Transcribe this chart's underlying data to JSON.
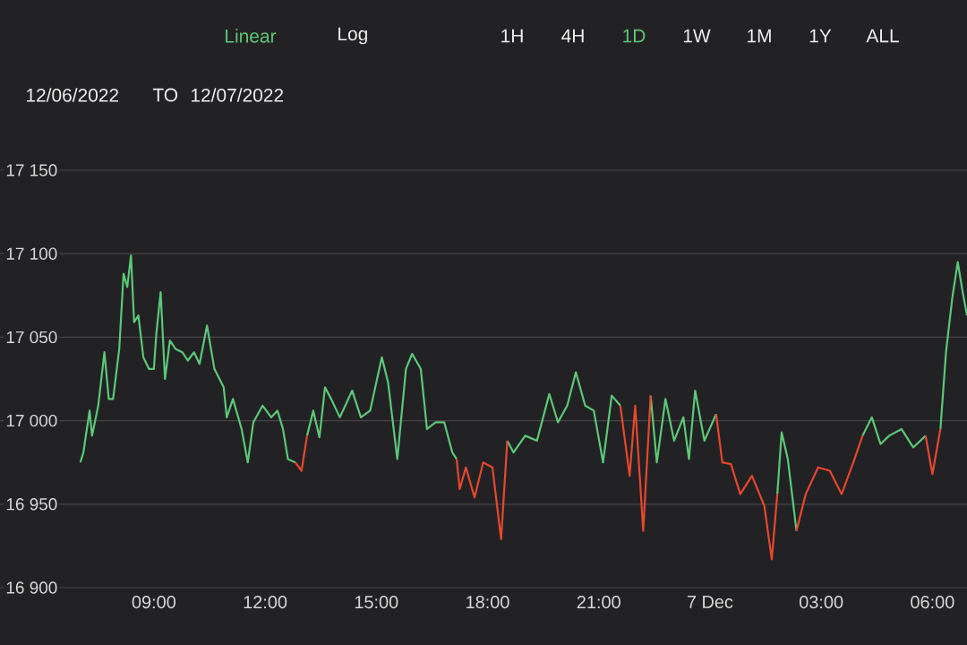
{
  "chart_data": {
    "type": "line",
    "annotations": [
      "Linear",
      "Log",
      "1H",
      "4H",
      "1D",
      "1W",
      "1M",
      "1Y",
      "ALL",
      "12/06/2022",
      "TO",
      "12/07/2022"
    ],
    "x": [
      "2022-12-06T07:01",
      "2022-12-06T07:06",
      "2022-12-06T07:16",
      "2022-12-06T07:20",
      "2022-12-06T07:30",
      "2022-12-06T07:40",
      "2022-12-06T07:47",
      "2022-12-06T07:54",
      "2022-12-06T08:04",
      "2022-12-06T08:11",
      "2022-12-06T08:17",
      "2022-12-06T08:23",
      "2022-12-06T08:28",
      "2022-12-06T08:35",
      "2022-12-06T08:43",
      "2022-12-06T08:52",
      "2022-12-06T09:00",
      "2022-12-06T09:04",
      "2022-12-06T09:11",
      "2022-12-06T09:18",
      "2022-12-06T09:26",
      "2022-12-06T09:35",
      "2022-12-06T09:46",
      "2022-12-06T09:55",
      "2022-12-06T10:05",
      "2022-12-06T10:14",
      "2022-12-06T10:26",
      "2022-12-06T10:38",
      "2022-12-06T10:53",
      "2022-12-06T10:58",
      "2022-12-06T11:08",
      "2022-12-06T11:22",
      "2022-12-06T11:32",
      "2022-12-06T11:41",
      "2022-12-06T11:56",
      "2022-12-06T12:10",
      "2022-12-06T12:20",
      "2022-12-06T12:29",
      "2022-12-06T12:37",
      "2022-12-06T12:49",
      "2022-12-06T12:59",
      "2022-12-06T13:08",
      "2022-12-06T13:18",
      "2022-12-06T13:28",
      "2022-12-06T13:37",
      "2022-12-06T13:47",
      "2022-12-06T14:01",
      "2022-12-06T14:21",
      "2022-12-06T14:35",
      "2022-12-06T14:50",
      "2022-12-06T15:09",
      "2022-12-06T15:19",
      "2022-12-06T15:34",
      "2022-12-06T15:48",
      "2022-12-06T15:58",
      "2022-12-06T16:12",
      "2022-12-06T16:22",
      "2022-12-06T16:36",
      "2022-12-06T16:50",
      "2022-12-06T17:03",
      "2022-12-06T17:10",
      "2022-12-06T17:15",
      "2022-12-06T17:25",
      "2022-12-06T17:39",
      "2022-12-06T17:53",
      "2022-12-06T18:08",
      "2022-12-06T18:22",
      "2022-12-06T18:32",
      "2022-12-06T18:42",
      "2022-12-06T19:01",
      "2022-12-06T19:20",
      "2022-12-06T19:40",
      "2022-12-06T19:54",
      "2022-12-06T20:09",
      "2022-12-06T20:23",
      "2022-12-06T20:38",
      "2022-12-06T20:52",
      "2022-12-06T21:07",
      "2022-12-06T21:21",
      "2022-12-06T21:35",
      "2022-12-06T21:50",
      "2022-12-06T21:59",
      "2022-12-06T22:12",
      "2022-12-06T22:24",
      "2022-12-06T22:34",
      "2022-12-06T22:48",
      "2022-12-06T23:02",
      "2022-12-06T23:17",
      "2022-12-06T23:26",
      "2022-12-06T23:36",
      "2022-12-06T23:51",
      "2022-12-07T00:10",
      "2022-12-07T00:20",
      "2022-12-07T00:34",
      "2022-12-07T00:49",
      "2022-12-07T01:08",
      "2022-12-07T01:28",
      "2022-12-07T01:40",
      "2022-12-07T01:49",
      "2022-12-07T01:56",
      "2022-12-07T02:06",
      "2022-12-07T02:20",
      "2022-12-07T02:35",
      "2022-12-07T02:55",
      "2022-12-07T03:14",
      "2022-12-07T03:33",
      "2022-12-07T03:52",
      "2022-12-07T04:07",
      "2022-12-07T04:22",
      "2022-12-07T04:36",
      "2022-12-07T04:50",
      "2022-12-07T05:10",
      "2022-12-07T05:29",
      "2022-12-07T05:49",
      "2022-12-07T06:00",
      "2022-12-07T06:13",
      "2022-12-07T06:22",
      "2022-12-07T06:32",
      "2022-12-07T06:41",
      "2022-12-07T06:49",
      "2022-12-07T06:56"
    ],
    "series": [
      {
        "color": "#5cc878",
        "values": [
          16975,
          16981,
          17006,
          16991,
          17009,
          17041,
          17013,
          17013,
          17043,
          17088,
          17080,
          17099,
          17059,
          17063,
          17038,
          17031,
          17031,
          17052,
          17077,
          17025,
          17048,
          17043,
          17041,
          17036,
          17041,
          17034,
          17057,
          17031,
          17020,
          17002,
          17013,
          16995,
          16975,
          16999,
          17009,
          17002,
          17006,
          16995,
          16977,
          16975,
          null,
          16991,
          17006,
          16990,
          17020,
          17013,
          17002,
          17018,
          17002,
          17006,
          17038,
          17023,
          16977,
          17031,
          17040,
          17031,
          16995,
          16999,
          16999,
          16981,
          16977,
          null,
          null,
          null,
          null,
          null,
          null,
          16988,
          16981,
          16991,
          16988,
          17016,
          16999,
          17009,
          17029,
          17009,
          17006,
          16975,
          17015,
          17009,
          null,
          null,
          null,
          17015,
          16975,
          17013,
          16988,
          17002,
          16977,
          17018,
          16988,
          17004,
          null,
          null,
          null,
          null,
          null,
          null,
          16956,
          16993,
          16977,
          16934,
          null,
          null,
          null,
          null,
          null,
          16991,
          17002,
          16986,
          16991,
          16995,
          16984,
          16991,
          null,
          16995,
          17041,
          17073,
          17095,
          17077,
          17063
        ]
      },
      {
        "color": "#e8472e",
        "values": [
          null,
          null,
          null,
          null,
          null,
          null,
          null,
          null,
          null,
          null,
          null,
          null,
          null,
          null,
          null,
          null,
          null,
          null,
          null,
          null,
          null,
          null,
          null,
          null,
          null,
          null,
          null,
          null,
          null,
          null,
          null,
          null,
          null,
          null,
          null,
          null,
          null,
          null,
          null,
          16975,
          16970,
          16991,
          null,
          null,
          null,
          null,
          null,
          null,
          null,
          null,
          null,
          null,
          null,
          null,
          null,
          null,
          null,
          null,
          null,
          null,
          16977,
          16959,
          16972,
          16954,
          16975,
          16972,
          16929,
          16988,
          null,
          null,
          null,
          null,
          null,
          null,
          null,
          null,
          null,
          null,
          null,
          17009,
          16967,
          17009,
          16934,
          17015,
          null,
          null,
          null,
          null,
          null,
          null,
          null,
          17004,
          16975,
          16974,
          16956,
          16967,
          16949,
          16917,
          16956,
          null,
          null,
          16934,
          16956,
          16972,
          16970,
          16956,
          16975,
          16991,
          null,
          null,
          null,
          null,
          null,
          16991,
          16968,
          16995,
          null,
          null,
          null,
          null,
          null
        ]
      }
    ],
    "xlim": [
      "2022-12-06T04:51",
      "2022-12-07T06:56"
    ],
    "ylim": [
      16900,
      17150
    ],
    "xticks": [
      {
        "value": "2022-12-06T09:00",
        "label": "09:00"
      },
      {
        "value": "2022-12-06T12:00",
        "label": "12:00"
      },
      {
        "value": "2022-12-06T15:00",
        "label": "15:00"
      },
      {
        "value": "2022-12-06T18:00",
        "label": "18:00"
      },
      {
        "value": "2022-12-06T21:00",
        "label": "21:00"
      },
      {
        "value": "2022-12-07T00:00",
        "label": "7 Dec"
      },
      {
        "value": "2022-12-07T03:00",
        "label": "03:00"
      },
      {
        "value": "2022-12-07T06:00",
        "label": "06:00"
      }
    ],
    "yticks": [
      {
        "value": 16900,
        "label": "16 900"
      },
      {
        "value": 16950,
        "label": "16 950"
      },
      {
        "value": 17000,
        "label": "17 000"
      },
      {
        "value": 17050,
        "label": "17 050"
      },
      {
        "value": 17100,
        "label": "17 100"
      },
      {
        "value": 17150,
        "label": "17 150"
      }
    ],
    "grid": "y",
    "marker": "none",
    "line_style": "solid"
  }
}
